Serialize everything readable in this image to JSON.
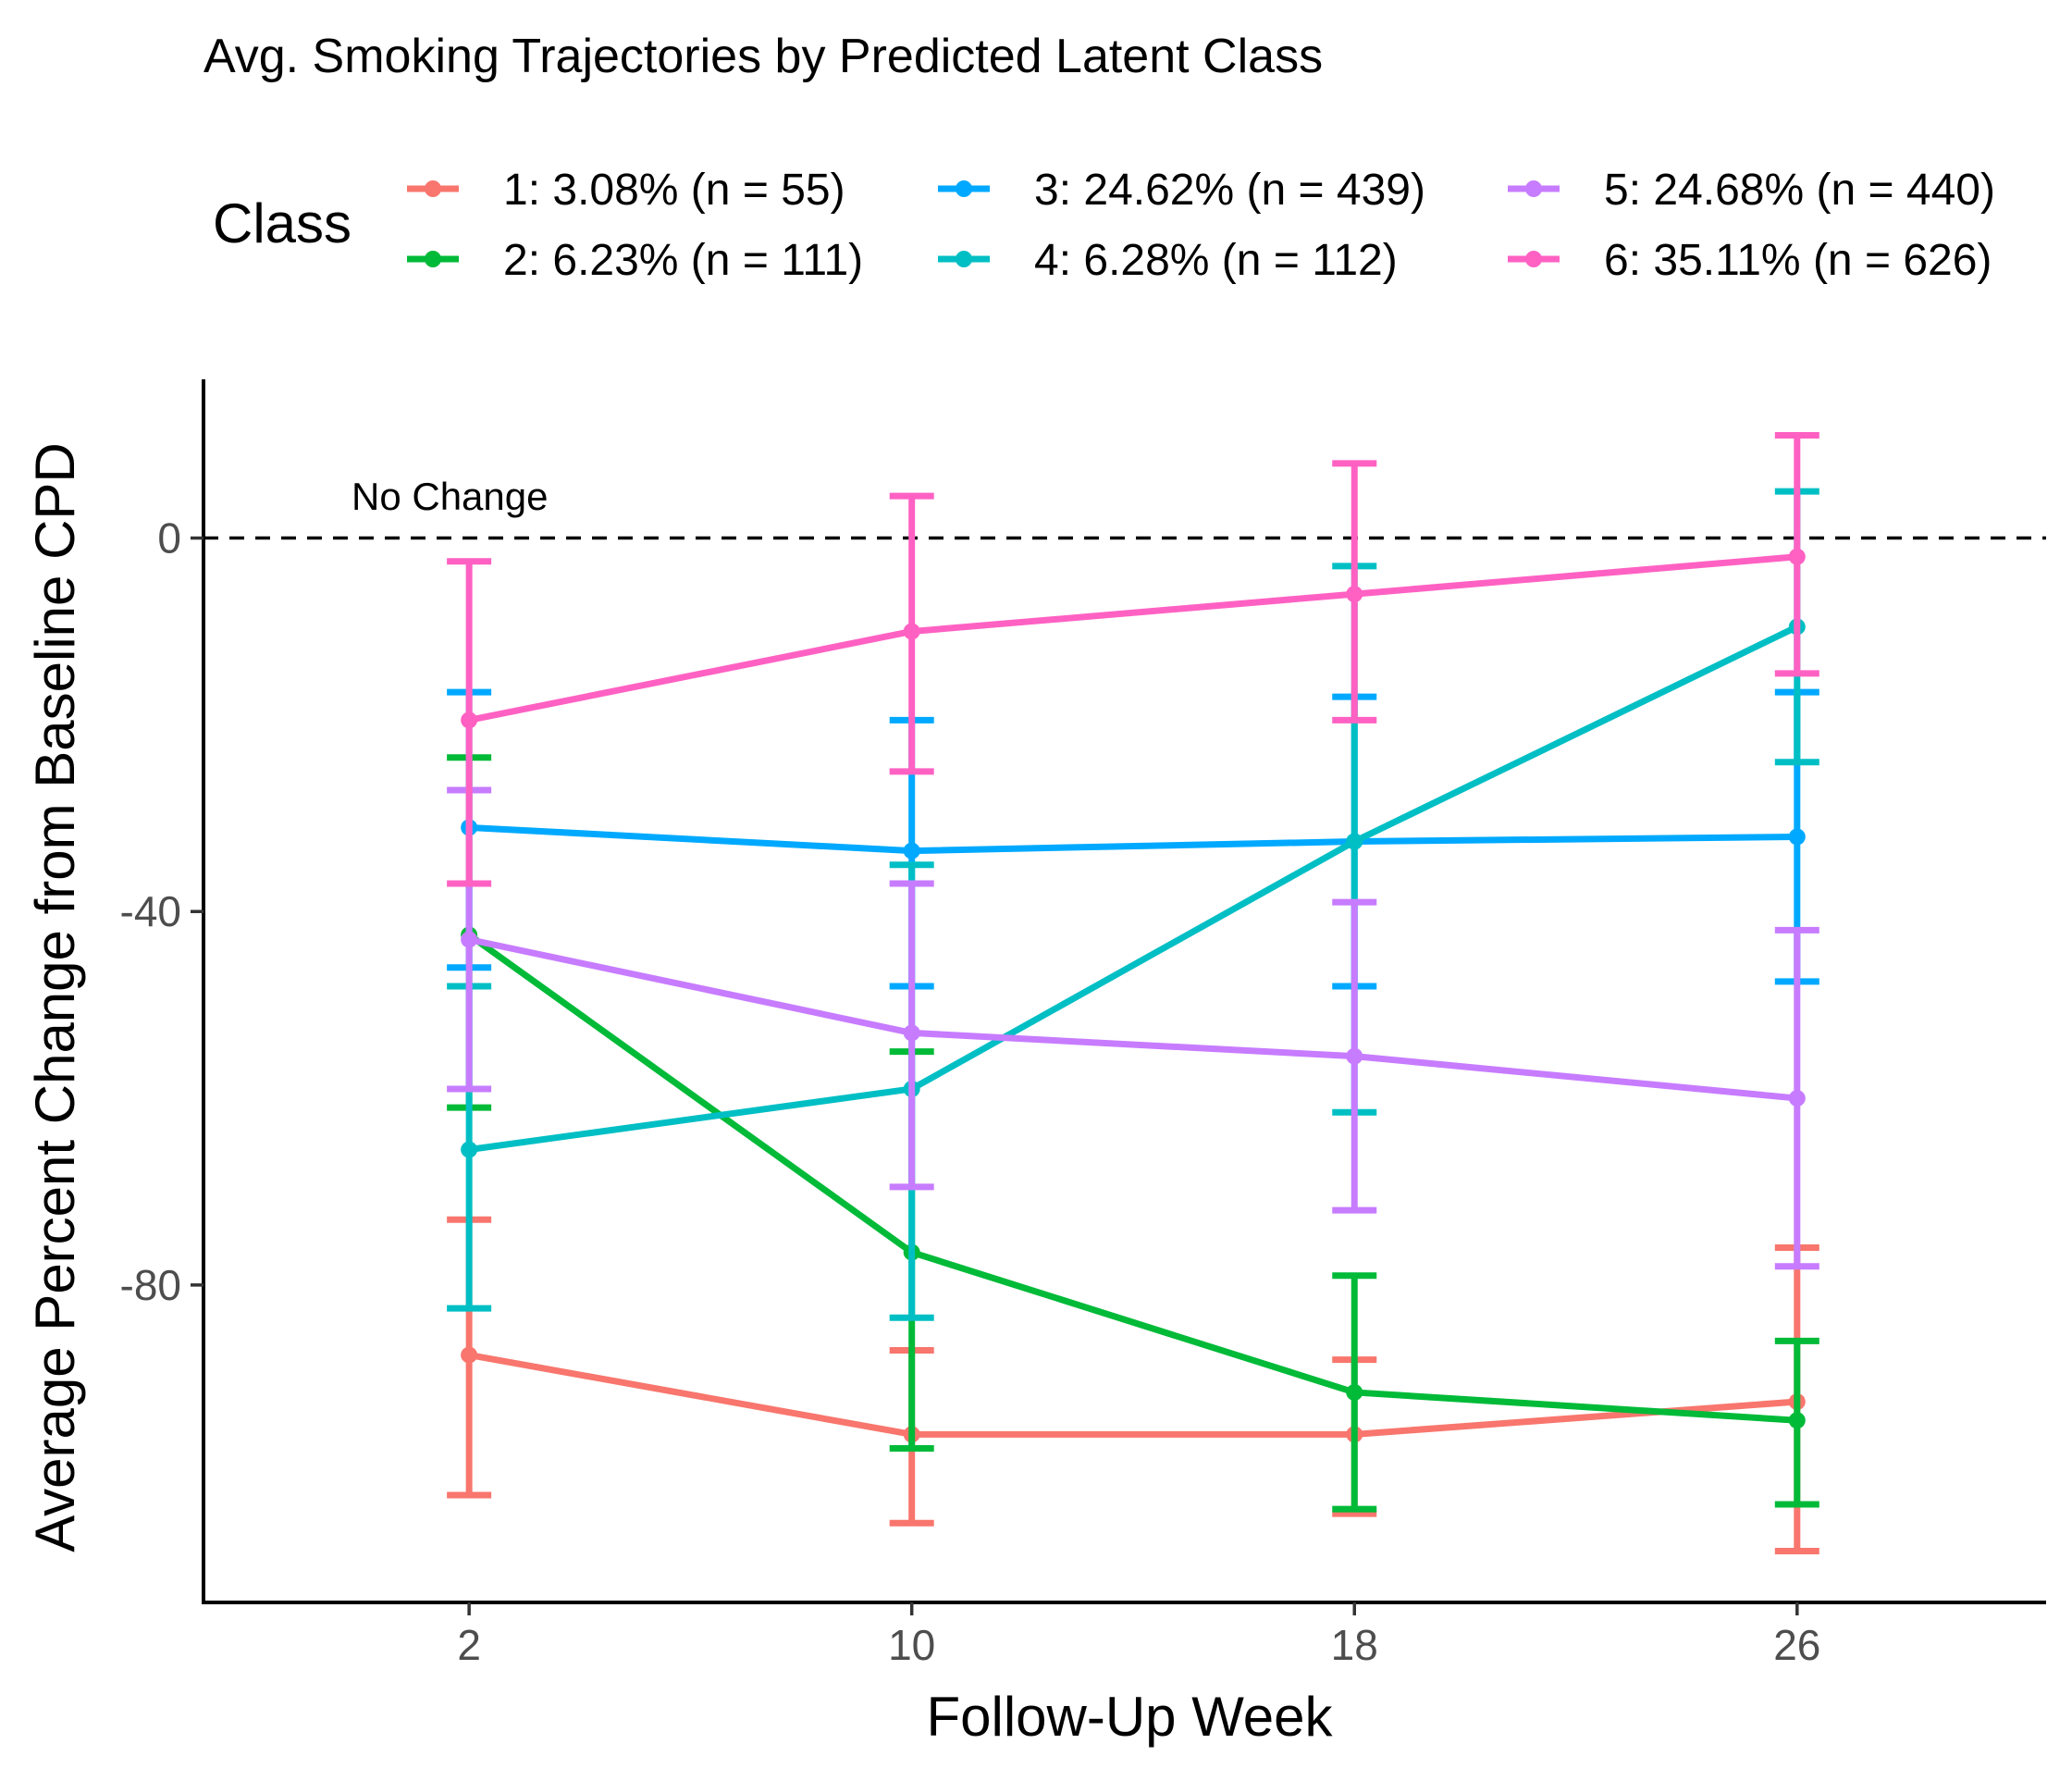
{
  "chart_data": {
    "type": "line",
    "title": "Avg. Smoking Trajectories by Predicted Latent Class",
    "xlabel": "Follow-Up Week",
    "ylabel": "Average Percent Change from Baseline CPD",
    "x": [
      2,
      10,
      18,
      26
    ],
    "x_ticks": [
      "2",
      "10",
      "18",
      "26"
    ],
    "y_ticks": [
      "0",
      "-40",
      "-80"
    ],
    "xlim": [
      -2.8,
      30.5
    ],
    "ylim": [
      -114,
      17
    ],
    "legend_title": "Class",
    "legend_position": "top",
    "grid": false,
    "reference_line": {
      "y": 0,
      "style": "dashed",
      "label": "No Change"
    },
    "series": [
      {
        "name": "1: 3.08% (n = 55)",
        "color": "#F8766D",
        "values": [
          -87.5,
          -96,
          -96,
          -92.5
        ],
        "lower": [
          -102.5,
          -105.5,
          -104.5,
          -108.5
        ],
        "upper": [
          -73,
          -87,
          -88,
          -76
        ]
      },
      {
        "name": "2: 6.23% (n = 111)",
        "color": "#00BA38",
        "values": [
          -42.5,
          -76.5,
          -91.5,
          -94.5
        ],
        "lower": [
          -61,
          -97.5,
          -104,
          -103.5
        ],
        "upper": [
          -23.5,
          -55,
          -79,
          -86
        ]
      },
      {
        "name": "3: 24.62% (n = 439)",
        "color": "#00A9FF",
        "values": [
          -31,
          -33.5,
          -32.5,
          -32
        ],
        "lower": [
          -46,
          -48,
          -48,
          -47.5
        ],
        "upper": [
          -16.5,
          -19.5,
          -17,
          -16.5
        ]
      },
      {
        "name": "4: 6.28% (n = 112)",
        "color": "#00BFC4",
        "values": [
          -65.5,
          -59,
          -32.5,
          -9.5
        ],
        "lower": [
          -82.5,
          -83.5,
          -61.5,
          -24
        ],
        "upper": [
          -48,
          -35,
          -3,
          5
        ]
      },
      {
        "name": "5: 24.68% (n = 440)",
        "color": "#C77CFF",
        "values": [
          -43,
          -53,
          -55.5,
          -60
        ],
        "lower": [
          -59,
          -69.5,
          -72,
          -78
        ],
        "upper": [
          -27,
          -37,
          -39,
          -42
        ]
      },
      {
        "name": "6: 35.11% (n = 626)",
        "color": "#FF61C3",
        "values": [
          -19.5,
          -10,
          -6,
          -2
        ],
        "lower": [
          -37,
          -25,
          -19.5,
          -14.5
        ],
        "upper": [
          -2.5,
          4.5,
          8,
          11
        ]
      }
    ]
  }
}
